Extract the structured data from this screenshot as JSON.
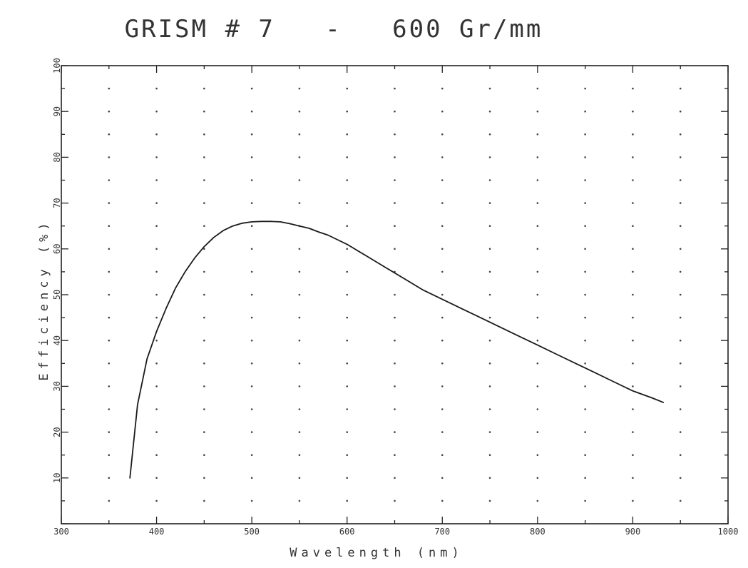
{
  "chart_data": {
    "type": "line",
    "title": "GRISM # 7   -   600 Gr/mm",
    "xlabel": "Wavelength (nm)",
    "ylabel": "Efficiency (%)",
    "xlim": [
      300,
      1000
    ],
    "ylim": [
      0,
      100
    ],
    "xticks": [
      300,
      400,
      500,
      600,
      700,
      800,
      900,
      1000
    ],
    "yticks": [
      10,
      20,
      30,
      40,
      50,
      60,
      70,
      80,
      90,
      100
    ],
    "grid": "dotted",
    "series": [
      {
        "x": [
          372,
          380,
          390,
          400,
          410,
          420,
          430,
          440,
          450,
          460,
          470,
          480,
          490,
          500,
          510,
          520,
          530,
          540,
          550,
          560,
          570,
          580,
          590,
          600,
          620,
          640,
          660,
          680,
          700,
          720,
          740,
          760,
          780,
          800,
          820,
          840,
          860,
          880,
          900,
          920,
          932
        ],
        "y": [
          10,
          26,
          36,
          42,
          47,
          51.5,
          55,
          58,
          60.5,
          62.5,
          64,
          65,
          65.6,
          65.9,
          66,
          66,
          65.9,
          65.5,
          65,
          64.5,
          63.7,
          63,
          62,
          61,
          58.5,
          56,
          53.5,
          51,
          49,
          47,
          45,
          43,
          41,
          39,
          37,
          35,
          33,
          31,
          29,
          27.5,
          26.5
        ]
      }
    ]
  }
}
